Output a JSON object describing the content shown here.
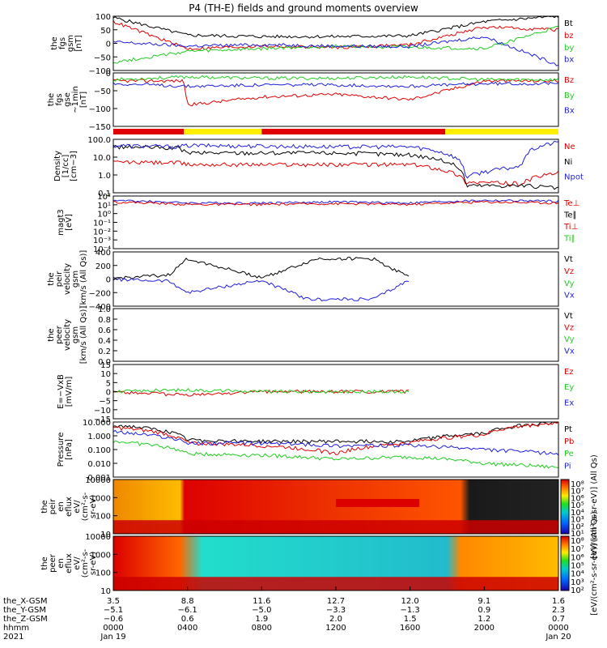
{
  "title": "P4 (TH-E) fields and ground moments overview",
  "colors": {
    "black": "#000000",
    "red": "#e00000",
    "green": "#22cc22",
    "blue": "#1f1fdd",
    "yellow": "#ffee00"
  },
  "chart_data": [
    {
      "type": "line",
      "panel": "fgs_gsm",
      "ylabel": [
        "the",
        "fgs",
        "gsm",
        "[nT]"
      ],
      "ylim": [
        -100,
        100
      ],
      "yticks": [
        "100",
        "50",
        "0",
        "−50",
        "−100"
      ],
      "legend": [
        {
          "name": "Bt",
          "color": "black"
        },
        {
          "name": "bz",
          "color": "red"
        },
        {
          "name": "by",
          "color": "green"
        },
        {
          "name": "bx",
          "color": "blue"
        }
      ],
      "series": [
        {
          "name": "Bt",
          "color": "black",
          "x": [
            0,
            4,
            8,
            12,
            16,
            20,
            24
          ],
          "values": [
            95,
            30,
            25,
            25,
            28,
            80,
            100
          ]
        },
        {
          "name": "bz",
          "color": "red",
          "x": [
            0,
            4,
            8,
            12,
            16,
            20,
            24
          ],
          "values": [
            80,
            -20,
            -10,
            -15,
            -5,
            60,
            50
          ]
        },
        {
          "name": "by",
          "color": "green",
          "x": [
            0,
            4,
            8,
            12,
            16,
            20,
            24
          ],
          "values": [
            -70,
            -30,
            -20,
            -10,
            -15,
            -20,
            60
          ]
        },
        {
          "name": "bx",
          "color": "blue",
          "x": [
            0,
            4,
            8,
            12,
            16,
            20,
            24
          ],
          "values": [
            5,
            -10,
            -5,
            -10,
            -12,
            25,
            -80
          ]
        }
      ]
    },
    {
      "type": "line",
      "panel": "fgs_gse_1min",
      "ylabel": [
        "the",
        "fgs",
        "gse",
        "~1min",
        "[nT]"
      ],
      "ylim": [
        -170,
        30
      ],
      "yticks": [
        "0",
        "−50",
        "−100",
        "−150"
      ],
      "legend": [
        {
          "name": "Bz",
          "color": "red"
        },
        {
          "name": "By",
          "color": "green"
        },
        {
          "name": "Bx",
          "color": "blue"
        }
      ],
      "series": [
        {
          "name": "Bz",
          "color": "red",
          "x": [
            0,
            3.8,
            4,
            8,
            12,
            16,
            20,
            24
          ],
          "values": [
            0,
            0,
            -90,
            -60,
            -50,
            -70,
            0,
            0
          ]
        },
        {
          "name": "By",
          "color": "green",
          "x": [
            0,
            4,
            8,
            12,
            16,
            20,
            24
          ],
          "values": [
            5,
            15,
            10,
            10,
            15,
            5,
            5
          ]
        },
        {
          "name": "Bx",
          "color": "blue",
          "x": [
            0,
            4,
            8,
            12,
            16,
            20,
            24
          ],
          "values": [
            -10,
            -20,
            -15,
            -15,
            -20,
            -10,
            -10
          ]
        }
      ]
    },
    {
      "type": "bar",
      "panel": "mode_bar",
      "segments": [
        {
          "from": 0,
          "to": 3.8,
          "color": "red"
        },
        {
          "from": 3.8,
          "to": 8,
          "color": "yellow"
        },
        {
          "from": 8,
          "to": 17.9,
          "color": "red"
        },
        {
          "from": 17.9,
          "to": 24,
          "color": "yellow"
        }
      ]
    },
    {
      "type": "line",
      "panel": "density",
      "ylabel": [
        "Density",
        "[1/cc]",
        "[cm−3]"
      ],
      "scale": "log",
      "ylim": [
        0.1,
        300
      ],
      "yticks": [
        "100.0",
        "10.0",
        "1.0",
        "0.1"
      ],
      "legend": [
        {
          "name": "Ne",
          "color": "red"
        },
        {
          "name": "Ni",
          "color": "black"
        },
        {
          "name": "Npot",
          "color": "blue"
        }
      ],
      "series": [
        {
          "name": "Ne",
          "color": "red",
          "x": [
            0,
            3.5,
            4,
            12,
            16,
            19,
            22,
            24
          ],
          "values": [
            10,
            9,
            7,
            7,
            7,
            0.5,
            0.4,
            2
          ]
        },
        {
          "name": "Ni",
          "color": "black",
          "x": [
            0,
            3.5,
            4,
            12,
            16,
            19,
            22,
            24
          ],
          "values": [
            100,
            80,
            40,
            40,
            30,
            0.3,
            0.3,
            0.2
          ]
        },
        {
          "name": "Npot",
          "color": "blue",
          "x": [
            0,
            3.5,
            4,
            12,
            16,
            19,
            22,
            24
          ],
          "values": [
            120,
            100,
            120,
            100,
            100,
            1,
            5,
            200
          ]
        }
      ]
    },
    {
      "type": "line",
      "panel": "temperature",
      "ylabel": [
        "magt3",
        "[eV]"
      ],
      "scale": "log",
      "ylim": [
        0.0001,
        200
      ],
      "yticks": [
        "10²",
        "10¹",
        "10⁰",
        "10⁻¹",
        "10⁻²",
        "10⁻³",
        "10⁻⁴"
      ],
      "legend": [
        {
          "name": "Te⊥",
          "color": "red"
        },
        {
          "name": "Te∥",
          "color": "black"
        },
        {
          "name": "Ti⊥",
          "color": "red"
        },
        {
          "name": "Ti∥",
          "color": "green"
        }
      ],
      "series": [
        {
          "name": "Ti",
          "color": "blue",
          "x": [
            0,
            4,
            8,
            12,
            16,
            20,
            24
          ],
          "values": [
            60,
            30,
            30,
            40,
            30,
            60,
            50
          ]
        },
        {
          "name": "Te",
          "color": "red",
          "x": [
            0,
            4,
            8,
            12,
            16,
            20,
            24
          ],
          "values": [
            40,
            20,
            20,
            25,
            20,
            40,
            30
          ]
        }
      ]
    },
    {
      "type": "line",
      "panel": "peir_velocity",
      "ylabel": [
        "the",
        "peir",
        "velocity",
        "gsm",
        "[km/s (All Qs)]"
      ],
      "ylim": [
        -400,
        400
      ],
      "yticks": [
        "400",
        "200",
        "0",
        "−200",
        "−400"
      ],
      "legend": [
        {
          "name": "Vt",
          "color": "black"
        },
        {
          "name": "Vz",
          "color": "red"
        },
        {
          "name": "Vy",
          "color": "green"
        },
        {
          "name": "Vx",
          "color": "blue"
        }
      ],
      "series": [
        {
          "name": "Vt",
          "color": "black",
          "x": [
            0,
            3,
            4,
            8,
            10.5,
            11,
            14,
            16
          ],
          "values": [
            10,
            60,
            300,
            20,
            250,
            300,
            300,
            20
          ]
        },
        {
          "name": "Vx",
          "color": "blue",
          "x": [
            0,
            3,
            4,
            8,
            10.5,
            11,
            14,
            16
          ],
          "values": [
            -5,
            -30,
            -200,
            -20,
            -300,
            -300,
            -300,
            -10
          ]
        }
      ]
    },
    {
      "type": "line",
      "panel": "peer_velocity",
      "ylabel": [
        "the",
        "peer",
        "velocity",
        "gsm",
        "[km/s (All Qs)]"
      ],
      "ylim": [
        0,
        1
      ],
      "yticks": [
        "1.0",
        "0.8",
        "0.6",
        "0.4",
        "0.2",
        "0.0"
      ],
      "legend": [
        {
          "name": "Vt",
          "color": "black"
        },
        {
          "name": "Vz",
          "color": "red"
        },
        {
          "name": "Vy",
          "color": "green"
        },
        {
          "name": "Vx",
          "color": "blue"
        }
      ],
      "series": []
    },
    {
      "type": "line",
      "panel": "efield",
      "ylabel": [
        "E=−VxB",
        "[mV/m]"
      ],
      "ylim": [
        -15,
        15
      ],
      "yticks": [
        "15",
        "10",
        "5",
        "0",
        "−5",
        "−10",
        "−15"
      ],
      "legend": [
        {
          "name": "Ez",
          "color": "red"
        },
        {
          "name": "Ey",
          "color": "green"
        },
        {
          "name": "Ex",
          "color": "blue"
        }
      ],
      "series": [
        {
          "name": "Ez",
          "color": "red",
          "x": [
            0,
            4,
            8,
            16
          ],
          "values": [
            0,
            -2,
            0,
            0
          ]
        },
        {
          "name": "Ey",
          "color": "green",
          "x": [
            0,
            4,
            8,
            16
          ],
          "values": [
            0,
            1,
            0,
            0
          ]
        }
      ]
    },
    {
      "type": "line",
      "panel": "pressure",
      "ylabel": [
        "Pressure",
        "[nPa]"
      ],
      "scale": "log",
      "ylim": [
        0.001,
        10
      ],
      "yticks": [
        "10.000",
        "1.000",
        "0.100",
        "0.010",
        "0.001"
      ],
      "legend": [
        {
          "name": "Pt",
          "color": "black"
        },
        {
          "name": "Pb",
          "color": "red"
        },
        {
          "name": "Pe",
          "color": "green"
        },
        {
          "name": "Pi",
          "color": "blue"
        }
      ],
      "series": [
        {
          "name": "Pt",
          "color": "black",
          "x": [
            0,
            4,
            8,
            12,
            16,
            20,
            24
          ],
          "values": [
            6,
            0.5,
            0.4,
            0.4,
            0.4,
            1.5,
            10
          ]
        },
        {
          "name": "Pb",
          "color": "red",
          "x": [
            0,
            4,
            8,
            12,
            16,
            20,
            24
          ],
          "values": [
            4,
            0.3,
            0.2,
            0.05,
            0.3,
            1.2,
            9
          ]
        },
        {
          "name": "Pe",
          "color": "green",
          "x": [
            0,
            4,
            8,
            12,
            16,
            20,
            24
          ],
          "values": [
            0.4,
            0.05,
            0.04,
            0.02,
            0.03,
            0.01,
            0.005
          ]
        },
        {
          "name": "Pi",
          "color": "blue",
          "x": [
            0,
            4,
            8,
            12,
            16,
            20,
            24
          ],
          "values": [
            2,
            0.3,
            0.3,
            0.2,
            0.2,
            0.1,
            0.05
          ]
        }
      ]
    },
    {
      "type": "heatmap",
      "panel": "peir_en_eflux",
      "ylabel": [
        "the",
        "peir",
        "en",
        "eflux",
        "eV/",
        "(cm²-s-",
        "sr-eV)"
      ],
      "scale": "log",
      "ylim": [
        5,
        20000
      ],
      "yticks": [
        "10000",
        "1000",
        "100",
        "10"
      ],
      "colorbar": {
        "label": "[eV/(cm²-s-sr-eV)] (All Qs)",
        "ticks": [
          "10⁸",
          "10⁷",
          "10⁶",
          "10⁵",
          "10⁴",
          "10³",
          "10²",
          "10¹"
        ]
      }
    },
    {
      "type": "heatmap",
      "panel": "peer_en_eflux",
      "ylabel": [
        "the",
        "peer",
        "en",
        "eflux",
        "eV/",
        "(cm²-s-",
        "sr-eV)"
      ],
      "scale": "log",
      "ylim": [
        5,
        20000
      ],
      "yticks": [
        "10000",
        "1000",
        "100",
        "10"
      ],
      "colorbar": {
        "label": "[eV/(cm²-s-sr-eV)] (All Qs)",
        "ticks": [
          "10⁸",
          "10⁷",
          "10⁶",
          "10⁵",
          "10⁴",
          "10³",
          "10²"
        ]
      }
    }
  ],
  "xaxis": {
    "rows": [
      {
        "label": "the_X-GSM",
        "values": [
          "3.5",
          "8.8",
          "11.6",
          "12.7",
          "12.0",
          "9.1",
          "1.6"
        ]
      },
      {
        "label": "the_Y-GSM",
        "values": [
          "−5.1",
          "−6.1",
          "−5.0",
          "−3.3",
          "−1.3",
          "0.9",
          "2.3"
        ]
      },
      {
        "label": "the_Z-GSM",
        "values": [
          "−0.6",
          "0.6",
          "1.9",
          "2.0",
          "1.5",
          "1.2",
          "0.7"
        ]
      },
      {
        "label": "hhmm",
        "values": [
          "0000",
          "0400",
          "0800",
          "1200",
          "1600",
          "2000",
          "0000"
        ]
      },
      {
        "label": "2021",
        "values": [
          "Jan 19",
          "",
          "",
          "",
          "",
          "",
          "Jan 20"
        ]
      }
    ]
  }
}
